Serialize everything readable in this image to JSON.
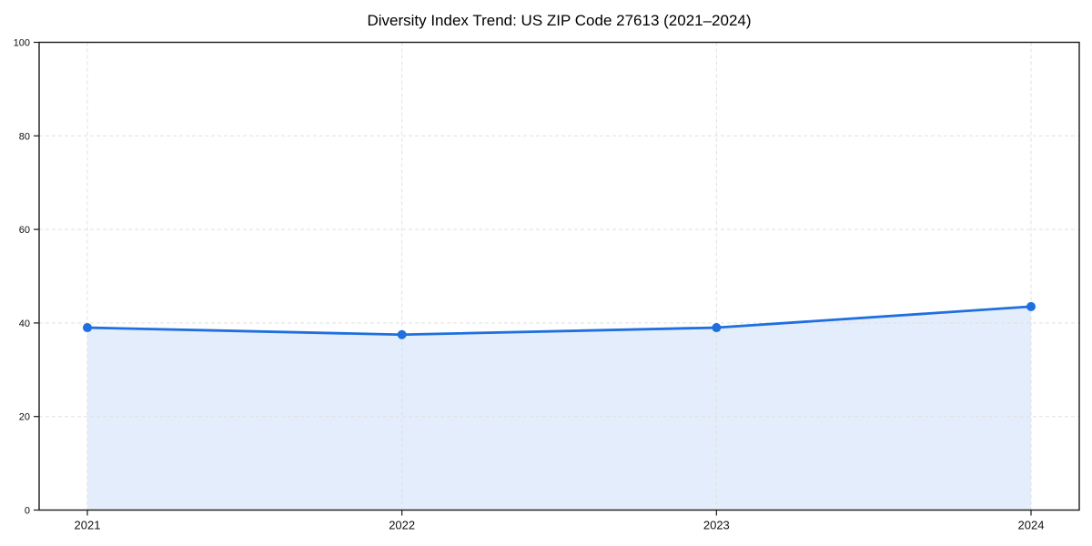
{
  "chart_data": {
    "type": "area",
    "title": "Diversity Index Trend: US ZIP Code 27613 (2021–2024)",
    "categories": [
      "2021",
      "2022",
      "2023",
      "2024"
    ],
    "series": [
      {
        "name": "Diversity Index",
        "values": [
          39,
          37.5,
          39,
          43.5
        ]
      }
    ],
    "xlabel": "",
    "ylabel": "",
    "ylim": [
      0,
      100
    ],
    "yticks": [
      0,
      20,
      40,
      60,
      80,
      100
    ],
    "grid": "dashed-both-directions",
    "legend": "none",
    "markers": "circle",
    "colors": {
      "line": "#1f6fe0",
      "marker": "#1f6fe0",
      "area_fill": "#e4edfb",
      "grid": "#e0e0e0",
      "spine": "#1a1a1a",
      "tick_text": "#111111",
      "background": "#ffffff"
    }
  }
}
